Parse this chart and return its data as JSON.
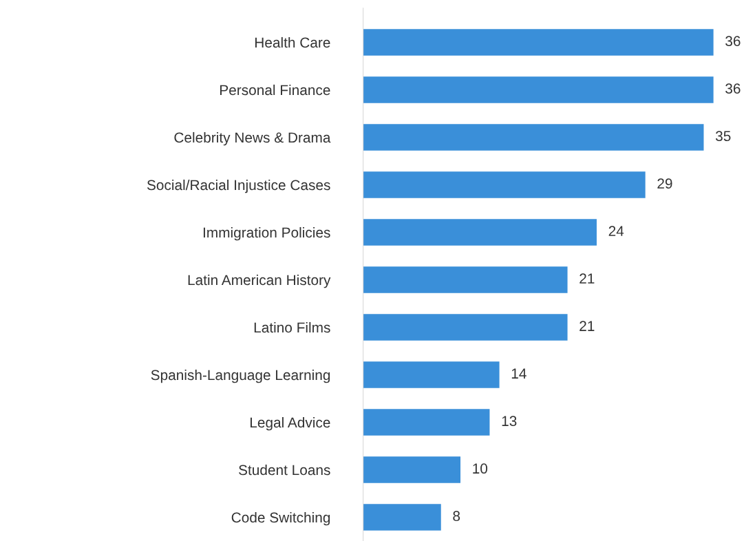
{
  "chart_data": {
    "type": "bar",
    "orientation": "horizontal",
    "categories": [
      "Health Care",
      "Personal Finance",
      "Celebrity News & Drama",
      "Social/Racial Injustice Cases",
      "Immigration Policies",
      "Latin American History",
      "Latino Films",
      "Spanish-Language Learning",
      "Legal Advice",
      "Student Loans",
      "Code Switching"
    ],
    "values": [
      36,
      36,
      35,
      29,
      24,
      21,
      21,
      14,
      13,
      10,
      8
    ],
    "color": "#3a8fd9",
    "data_labels": true,
    "grid": false,
    "legend": false
  }
}
